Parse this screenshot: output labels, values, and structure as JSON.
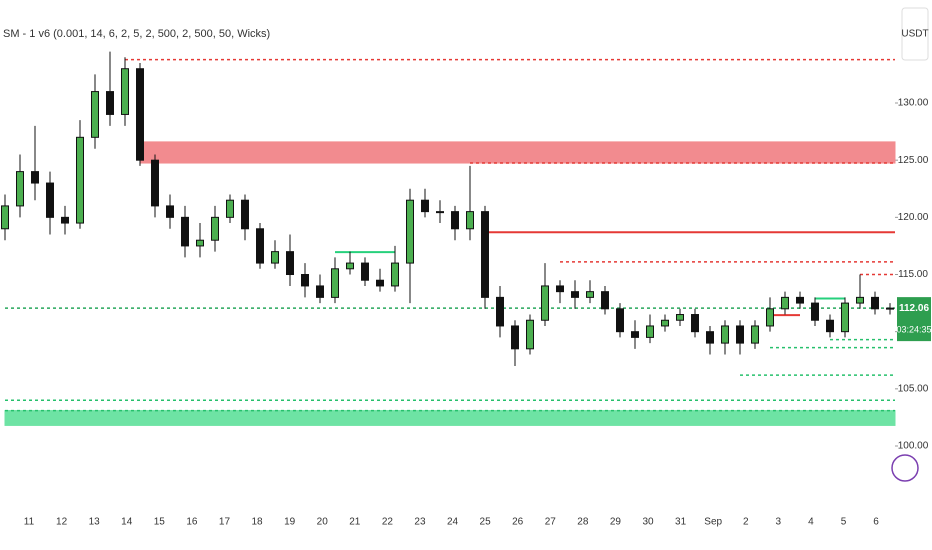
{
  "chart_data": {
    "type": "candlestick",
    "title": "SM - 1 v6 (0.001, 14, 6, 2, 5, 2, 500, 2, 500, 50, Wicks)",
    "currency": "USDT",
    "current_price": 112.06,
    "countdown": "03:24:35",
    "categories": [
      "11",
      "12",
      "13",
      "14",
      "15",
      "16",
      "17",
      "18",
      "19",
      "20",
      "21",
      "22",
      "23",
      "24",
      "25",
      "26",
      "27",
      "28",
      "29",
      "30",
      "31",
      "Sep",
      "2",
      "3",
      "4",
      "5",
      "6"
    ],
    "open": [
      119,
      121,
      124,
      123,
      120,
      119.5,
      127,
      131,
      129,
      133,
      125,
      121,
      120,
      117.5,
      118,
      120,
      121.5,
      119,
      116,
      117,
      115,
      114,
      113,
      115.5,
      116,
      114.5,
      114,
      116,
      121.5,
      120.5,
      120.5,
      119,
      120.5,
      113,
      110.5,
      108.5,
      111,
      114,
      113.5,
      113,
      113.5,
      112,
      110,
      109.5,
      110.5,
      111,
      111.5,
      110,
      109,
      110.5,
      109,
      110.5,
      112,
      113,
      112.5,
      111,
      110,
      112.5,
      113,
      112
    ],
    "high": [
      122,
      125.5,
      128,
      124,
      121,
      128.5,
      132.5,
      134.5,
      134,
      133.5,
      125.5,
      122,
      121,
      119.5,
      121,
      122,
      122,
      119.5,
      118,
      118.5,
      116,
      115,
      116.5,
      117,
      116.5,
      115.5,
      117.5,
      122.5,
      122.5,
      121.5,
      121,
      124.5,
      121,
      114,
      111,
      111.5,
      116,
      114.5,
      114.5,
      114.5,
      114,
      112.5,
      111,
      111.5,
      111.5,
      112,
      112,
      110.5,
      111,
      111,
      111,
      113,
      113.5,
      113.5,
      113,
      111.5,
      113,
      115,
      113.5,
      112.5
    ],
    "low": [
      118,
      120,
      121.5,
      118.5,
      118.5,
      119,
      126,
      128,
      128,
      124.5,
      120,
      119,
      116.5,
      116.5,
      117,
      119.5,
      118,
      115.5,
      115.5,
      114,
      113,
      112.5,
      112.5,
      115,
      114,
      113.5,
      113.5,
      112.5,
      120,
      119.5,
      118,
      118,
      112,
      109.5,
      107,
      108,
      110.5,
      112.5,
      112,
      112.5,
      111.5,
      109.5,
      108.5,
      109,
      110,
      110.5,
      109.5,
      108,
      108,
      108,
      108.5,
      110,
      111.5,
      112,
      110.5,
      109.5,
      109.5,
      112,
      111.5,
      111.5
    ],
    "close": [
      121,
      124,
      123,
      120,
      119.5,
      127,
      131,
      129,
      133,
      125,
      121,
      120,
      117.5,
      118,
      120,
      121.5,
      119,
      116,
      117,
      115,
      114,
      113,
      115.5,
      116,
      114.5,
      114,
      116,
      121.5,
      120.5,
      120.5,
      119,
      120.5,
      113,
      110.5,
      108.5,
      111,
      114,
      113.5,
      113,
      113.5,
      112,
      110,
      109.5,
      110.5,
      111,
      111.5,
      110,
      109,
      110.5,
      109,
      110.5,
      112,
      113,
      112.5,
      111,
      110,
      112.5,
      113,
      112,
      112.06
    ],
    "up_color": "#4caf50",
    "down_color": "#111111",
    "levels": [
      {
        "value": 133.8,
        "color": "#e53935",
        "style": "dotted",
        "start": 8
      },
      {
        "value": 124.75,
        "color": "#e53935",
        "style": "dotted",
        "start": 31
      },
      {
        "value": 118.7,
        "color": "#e53935",
        "style": "solid",
        "start": 32
      },
      {
        "value": 116.1,
        "color": "#e53935",
        "style": "dotted",
        "start": 37
      },
      {
        "value": 115,
        "color": "#e53935",
        "style": "dotted",
        "start": 57
      },
      {
        "value": 116.96,
        "color": "#26d07c",
        "style": "solid",
        "start": 22,
        "end": 26
      },
      {
        "value": 111.45,
        "color": "#e53935",
        "style": "solid",
        "start": 51,
        "end": 53
      },
      {
        "value": 112.9,
        "color": "#26d07c",
        "style": "solid",
        "start": 54,
        "end": 56
      },
      {
        "value": 112.06,
        "color": "#26a65b",
        "style": "dotted",
        "start": 0
      },
      {
        "value": 109.3,
        "color": "#26c06c",
        "style": "dotted",
        "start": 55
      },
      {
        "value": 108.6,
        "color": "#26c06c",
        "style": "dotted",
        "start": 51
      },
      {
        "value": 106.2,
        "color": "#26c06c",
        "style": "dotted",
        "start": 49
      },
      {
        "value": 104,
        "color": "#26c06c",
        "style": "dotted",
        "start": 0
      },
      {
        "value": 103.1,
        "color": "#26c06c",
        "style": "dotted",
        "start": 0
      }
    ],
    "zones": [
      {
        "low": 124.75,
        "high": 126.6,
        "color": "#f28b8f",
        "start": 9
      },
      {
        "low": 101.8,
        "high": 103.1,
        "color": "#6ee3a4",
        "start": 0
      }
    ],
    "ylim": [
      94.84,
      139.01
    ],
    "yticks": [
      {
        "value": 100,
        "label": "100.00"
      },
      {
        "value": 105,
        "label": "105.00"
      },
      {
        "value": 110,
        "label": "110.00"
      },
      {
        "value": 115,
        "label": "115.00"
      },
      {
        "value": 120,
        "label": "120.00"
      },
      {
        "value": 125,
        "label": "125.00"
      },
      {
        "value": 130,
        "label": "130.00"
      }
    ]
  }
}
